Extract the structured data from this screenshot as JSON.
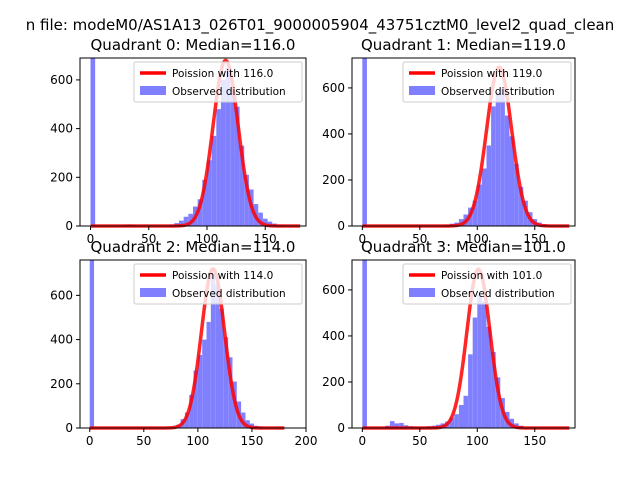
{
  "figure": {
    "suptitle": "n file: modeM0/AS1A13_026T01_9000005904_43751cztM0_level2_quad_clean"
  },
  "colors": {
    "hist": "#8080ff",
    "line": "#ff0000",
    "axis": "#000000"
  },
  "chart_data": [
    {
      "type": "bar",
      "title": "Quadrant 0: Median=116.0",
      "xlim": [
        -9,
        185
      ],
      "ylim": [
        0,
        690
      ],
      "xticks": [
        "0",
        "50",
        "100",
        "150"
      ],
      "yticks": [
        "0",
        "200",
        "400",
        "600"
      ],
      "legend_loc": "upper right",
      "line_label": "Poission with 116.0",
      "hist_label": "Observed distribution",
      "bin_width": 4,
      "bars": [
        [
          0,
          690
        ],
        [
          28,
          5
        ],
        [
          32,
          6
        ],
        [
          36,
          4
        ],
        [
          68,
          6
        ],
        [
          72,
          12
        ],
        [
          76,
          22
        ],
        [
          80,
          38
        ],
        [
          84,
          50
        ],
        [
          88,
          80
        ],
        [
          92,
          110
        ],
        [
          96,
          190
        ],
        [
          100,
          270
        ],
        [
          104,
          370
        ],
        [
          108,
          480
        ],
        [
          112,
          600
        ],
        [
          116,
          650
        ],
        [
          120,
          560
        ],
        [
          124,
          490
        ],
        [
          128,
          330
        ],
        [
          132,
          210
        ],
        [
          136,
          150
        ],
        [
          140,
          90
        ],
        [
          144,
          55
        ],
        [
          148,
          30
        ],
        [
          152,
          18
        ],
        [
          156,
          10
        ],
        [
          160,
          5
        ],
        [
          164,
          3
        ]
      ],
      "poisson_mean": 116.0,
      "poisson_peak": 680
    },
    {
      "type": "bar",
      "title": "Quadrant 1: Median=119.0",
      "xlim": [
        -9,
        185
      ],
      "ylim": [
        0,
        730
      ],
      "xticks": [
        "0",
        "50",
        "100",
        "150"
      ],
      "yticks": [
        "0",
        "200",
        "400",
        "600"
      ],
      "legend_loc": "upper right",
      "line_label": "Poission with 119.0",
      "hist_label": "Observed distribution",
      "bin_width": 4,
      "bars": [
        [
          0,
          730
        ],
        [
          72,
          5
        ],
        [
          76,
          10
        ],
        [
          80,
          15
        ],
        [
          84,
          30
        ],
        [
          88,
          50
        ],
        [
          92,
          80
        ],
        [
          96,
          110
        ],
        [
          100,
          180
        ],
        [
          104,
          250
        ],
        [
          108,
          350
        ],
        [
          112,
          520
        ],
        [
          116,
          580
        ],
        [
          120,
          600
        ],
        [
          124,
          480
        ],
        [
          128,
          390
        ],
        [
          132,
          270
        ],
        [
          136,
          170
        ],
        [
          140,
          110
        ],
        [
          144,
          60
        ],
        [
          148,
          30
        ],
        [
          152,
          15
        ],
        [
          156,
          8
        ]
      ],
      "poisson_mean": 119.0,
      "poisson_peak": 690
    },
    {
      "type": "bar",
      "title": "Quadrant 2: Median=114.0",
      "xlim": [
        -9,
        200
      ],
      "ylim": [
        0,
        760
      ],
      "xticks": [
        "0",
        "50",
        "100",
        "150",
        "200"
      ],
      "yticks": [
        "0",
        "200",
        "400",
        "600"
      ],
      "legend_loc": "upper right",
      "line_label": "Poission with 114.0",
      "hist_label": "Observed distribution",
      "bin_width": 4,
      "bars": [
        [
          0,
          760
        ],
        [
          76,
          5
        ],
        [
          80,
          15
        ],
        [
          84,
          40
        ],
        [
          88,
          70
        ],
        [
          92,
          150
        ],
        [
          96,
          260
        ],
        [
          100,
          330
        ],
        [
          104,
          400
        ],
        [
          108,
          480
        ],
        [
          112,
          700
        ],
        [
          116,
          650
        ],
        [
          120,
          540
        ],
        [
          124,
          410
        ],
        [
          128,
          320
        ],
        [
          132,
          210
        ],
        [
          136,
          120
        ],
        [
          140,
          70
        ],
        [
          144,
          35
        ],
        [
          148,
          20
        ],
        [
          152,
          10
        ],
        [
          156,
          7
        ]
      ],
      "poisson_mean": 114.0,
      "poisson_peak": 720
    },
    {
      "type": "bar",
      "title": "Quadrant 3: Median=101.0",
      "xlim": [
        -9,
        185
      ],
      "ylim": [
        0,
        730
      ],
      "xticks": [
        "0",
        "50",
        "100",
        "150"
      ],
      "yticks": [
        "0",
        "200",
        "400",
        "600"
      ],
      "legend_loc": "upper right",
      "line_label": "Poission with 101.0",
      "hist_label": "Observed distribution",
      "bin_width": 4,
      "bars": [
        [
          0,
          730
        ],
        [
          20,
          10
        ],
        [
          24,
          30
        ],
        [
          28,
          20
        ],
        [
          32,
          22
        ],
        [
          36,
          12
        ],
        [
          40,
          8
        ],
        [
          44,
          6
        ],
        [
          48,
          4
        ],
        [
          52,
          5
        ],
        [
          56,
          8
        ],
        [
          60,
          10
        ],
        [
          64,
          14
        ],
        [
          68,
          20
        ],
        [
          72,
          28
        ],
        [
          76,
          45
        ],
        [
          80,
          60
        ],
        [
          84,
          100
        ],
        [
          88,
          140
        ],
        [
          92,
          320
        ],
        [
          96,
          480
        ],
        [
          100,
          580
        ],
        [
          104,
          550
        ],
        [
          108,
          440
        ],
        [
          112,
          330
        ],
        [
          116,
          220
        ],
        [
          120,
          130
        ],
        [
          124,
          70
        ],
        [
          128,
          40
        ],
        [
          132,
          20
        ],
        [
          136,
          10
        ]
      ],
      "poisson_mean": 101.0,
      "poisson_peak": 690
    }
  ]
}
